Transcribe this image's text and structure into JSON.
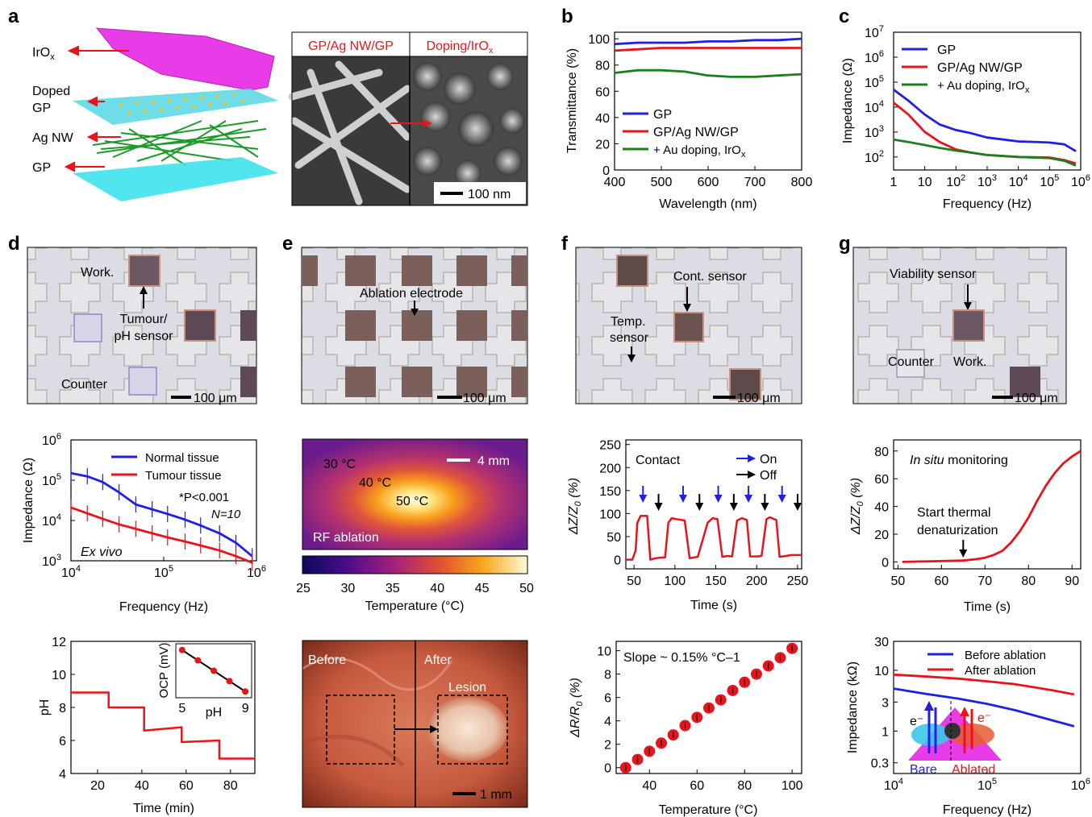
{
  "panel_letters": [
    "a",
    "b",
    "c",
    "d",
    "e",
    "f",
    "g"
  ],
  "panel_a": {
    "layer_labels": {
      "irox": "IrO",
      "irox_sub": "x",
      "doped": "Doped",
      "doped2": "GP",
      "agnw": "Ag NW",
      "gp": "GP"
    },
    "sem_left_title": "GP/Ag NW/GP",
    "sem_right_title": "Doping/IrO",
    "sem_right_sub": "x",
    "scalebar": "100 nm"
  },
  "panel_d_photo": {
    "work": "Work.",
    "tumour1": "Tumour/",
    "tumour2": "pH sensor",
    "counter": "Counter",
    "scalebar": "100 μm"
  },
  "panel_e_photo": {
    "ablation": "Ablation electrode",
    "scalebar": "100 μm"
  },
  "panel_f_photo": {
    "cont": "Cont. sensor",
    "temp1": "Temp.",
    "temp2": "sensor",
    "scalebar": "100 μm"
  },
  "panel_g_photo": {
    "viability": "Viability sensor",
    "counter": "Counter",
    "work": "Work.",
    "scalebar": "100 μm"
  },
  "thermal_map": {
    "t30": "30 °C",
    "t40": "40 °C",
    "t50": "50 °C",
    "scalebar": "4 mm",
    "caption": "RF ablation",
    "colorbar_ticks": [
      "25",
      "30",
      "35",
      "40",
      "45",
      "50"
    ],
    "xlabel": "Temperature (°C)"
  },
  "lesion_photo": {
    "before": "Before",
    "after": "After",
    "lesion": "Lesion",
    "scalebar": "1 mm"
  },
  "colors": {
    "blue": "#1f1fe6",
    "red": "#e8141b",
    "green": "#1e7d1e",
    "black": "#000000"
  },
  "chart_data": [
    {
      "id": "b",
      "type": "line",
      "xlabel": "Wavelength (nm)",
      "ylabel": "Transmittance (%)",
      "xlim": [
        400,
        800
      ],
      "ylim": [
        0,
        105
      ],
      "xticks": [
        "400",
        "500",
        "600",
        "700",
        "800"
      ],
      "yticks": [
        "0",
        "20",
        "40",
        "60",
        "80",
        "100"
      ],
      "legend": "bottom-left",
      "series": [
        {
          "name": "GP",
          "color": "#1f1fe6",
          "x": [
            400,
            450,
            500,
            550,
            600,
            650,
            700,
            750,
            800
          ],
          "y": [
            96,
            97,
            97,
            97,
            98,
            98,
            99,
            99,
            100
          ]
        },
        {
          "name": "GP/Ag NW/GP",
          "color": "#e8141b",
          "x": [
            400,
            450,
            500,
            550,
            600,
            650,
            700,
            750,
            800
          ],
          "y": [
            91,
            92,
            93,
            93,
            93,
            93,
            93,
            93,
            93
          ]
        },
        {
          "name": "+ Au doping, IrOx",
          "color": "#1e7d1e",
          "x": [
            400,
            450,
            500,
            550,
            600,
            650,
            700,
            750,
            800
          ],
          "y": [
            74,
            76,
            76,
            75,
            72,
            71,
            71,
            72,
            73
          ]
        }
      ]
    },
    {
      "id": "c",
      "type": "line",
      "xlabel": "Frequency (Hz)",
      "ylabel": "Impedance (Ω)",
      "xscale": "log",
      "yscale": "log",
      "xlim": [
        1,
        1000000
      ],
      "ylim": [
        30,
        10000000
      ],
      "legend": "top-left",
      "series": [
        {
          "name": "GP",
          "color": "#1f1fe6",
          "x": [
            1,
            3,
            10,
            30,
            100,
            300,
            1000,
            10000,
            100000,
            300000,
            700000
          ],
          "y": [
            50000,
            18000,
            5000,
            2000,
            1200,
            900,
            600,
            420,
            380,
            320,
            170
          ]
        },
        {
          "name": "GP/Ag NW/GP",
          "color": "#e8141b",
          "x": [
            1,
            3,
            10,
            30,
            100,
            300,
            1000,
            10000,
            100000,
            300000,
            700000
          ],
          "y": [
            15000,
            5000,
            1000,
            400,
            200,
            150,
            120,
            100,
            95,
            75,
            55
          ]
        },
        {
          "name": "+ Au doping, IrOx",
          "color": "#1e7d1e",
          "x": [
            1,
            3,
            10,
            30,
            100,
            300,
            1000,
            10000,
            100000,
            300000,
            700000
          ],
          "y": [
            500,
            400,
            300,
            230,
            180,
            150,
            120,
            100,
            90,
            70,
            45
          ]
        }
      ]
    },
    {
      "id": "d_imp",
      "type": "line",
      "xlabel": "Frequency (Hz)",
      "ylabel": "Impedance (Ω)",
      "xscale": "log",
      "yscale": "log",
      "xlim": [
        10000,
        1000000
      ],
      "ylim": [
        1000,
        1000000
      ],
      "legend": "top-right",
      "annotations": {
        "stat": "*P<0.001",
        "n": "N=10",
        "condition": "Ex vivo"
      },
      "series": [
        {
          "name": "Normal tissue",
          "color": "#1f1fe6",
          "x": [
            10000,
            15000,
            22000,
            33000,
            50000,
            75000,
            110000,
            170000,
            250000,
            400000,
            600000,
            900000
          ],
          "y": [
            150000,
            125000,
            90000,
            50000,
            25000,
            19000,
            14500,
            10500,
            7500,
            4800,
            2800,
            1300
          ]
        },
        {
          "name": "Tumour tissue",
          "color": "#e8141b",
          "x": [
            10000,
            15000,
            22000,
            33000,
            50000,
            75000,
            110000,
            170000,
            250000,
            400000,
            600000,
            900000
          ],
          "y": [
            21000,
            15000,
            11000,
            8000,
            6200,
            4800,
            3800,
            3000,
            2400,
            1800,
            1300,
            900
          ]
        }
      ]
    },
    {
      "id": "d_ph",
      "type": "line",
      "xlabel": "Time (min)",
      "ylabel": "pH",
      "xlim": [
        8,
        91
      ],
      "ylim": [
        4,
        12
      ],
      "xticks": [
        "20",
        "40",
        "60",
        "80"
      ],
      "yticks": [
        "4",
        "6",
        "8",
        "10",
        "12"
      ],
      "series": [
        {
          "name": "",
          "color": "#e8141b",
          "x": [
            8,
            25,
            25,
            41,
            41,
            58,
            58,
            75,
            75,
            91
          ],
          "y": [
            8.9,
            8.9,
            8.0,
            8.0,
            6.6,
            6.8,
            5.9,
            6.0,
            4.9,
            4.9
          ]
        }
      ],
      "inset": {
        "xlabel": "pH",
        "ylabel": "OCP (mV)",
        "xticks": [
          "5",
          "9"
        ],
        "x": [
          5,
          6,
          7,
          8,
          9
        ],
        "y": [
          5,
          4,
          3,
          2,
          1
        ]
      }
    },
    {
      "id": "f_contact",
      "type": "line",
      "xlabel": "Time (s)",
      "ylabel": "ΔZ/Z0 (%)",
      "xlim": [
        40,
        255
      ],
      "ylim": [
        -20,
        260
      ],
      "xticks": [
        "50",
        "100",
        "150",
        "200",
        "250"
      ],
      "yticks": [
        "0",
        "50",
        "100",
        "150",
        "200",
        "250"
      ],
      "annotations": {
        "title": "Contact",
        "on": "On",
        "off": "Off"
      },
      "series": [
        {
          "name": "",
          "color": "#e8141b",
          "x": [
            40,
            48,
            52,
            54,
            58,
            66,
            70,
            74,
            80,
            88,
            92,
            96,
            102,
            112,
            118,
            124,
            128,
            140,
            146,
            152,
            158,
            164,
            170,
            176,
            182,
            188,
            192,
            200,
            206,
            212,
            216,
            224,
            228,
            236,
            242,
            246,
            250,
            255
          ],
          "y": [
            0,
            0,
            20,
            80,
            95,
            95,
            0,
            2,
            4,
            5,
            80,
            90,
            88,
            85,
            3,
            5,
            6,
            80,
            90,
            88,
            6,
            8,
            7,
            85,
            90,
            86,
            7,
            7,
            8,
            88,
            92,
            86,
            6,
            8,
            10,
            10,
            10,
            10
          ]
        }
      ],
      "on_times": [
        61,
        110,
        153,
        190,
        231
      ],
      "off_times": [
        80,
        130,
        172,
        210,
        250
      ]
    },
    {
      "id": "f_temp",
      "type": "scatter",
      "xlabel": "Temperature (°C)",
      "ylabel": "ΔR/R0 (%)",
      "xlim": [
        26,
        104
      ],
      "ylim": [
        -0.5,
        10.8
      ],
      "xticks": [
        "40",
        "60",
        "80",
        "100"
      ],
      "yticks": [
        "0",
        "2",
        "4",
        "6",
        "8",
        "10"
      ],
      "annotations": {
        "slope": "Slope ~ 0.15% °C–1"
      },
      "series": [
        {
          "name": "",
          "color": "#e8141b",
          "x": [
            30,
            35,
            40,
            45,
            50,
            55,
            60,
            65,
            70,
            75,
            80,
            85,
            90,
            95,
            100
          ],
          "y": [
            0,
            0.7,
            1.4,
            2.1,
            2.8,
            3.6,
            4.3,
            5.1,
            5.8,
            6.6,
            7.3,
            8.0,
            8.7,
            9.4,
            10.2
          ]
        }
      ]
    },
    {
      "id": "g_insitu",
      "type": "line",
      "xlabel": "Time (s)",
      "ylabel": "ΔZ/Z0 (%)",
      "xlim": [
        49,
        92
      ],
      "ylim": [
        -5,
        88
      ],
      "xticks": [
        "50",
        "60",
        "70",
        "80",
        "90"
      ],
      "yticks": [
        "0",
        "20",
        "40",
        "60",
        "80"
      ],
      "annotations": {
        "title": "In situ monitoring",
        "note1": "Start thermal",
        "note2": "denaturization"
      },
      "series": [
        {
          "name": "",
          "color": "#e8141b",
          "x": [
            51,
            55,
            60,
            65,
            68,
            70,
            72,
            74,
            76,
            78,
            80,
            82,
            84,
            86,
            88,
            90,
            92
          ],
          "y": [
            0,
            0.3,
            0.6,
            1,
            2,
            3,
            5,
            8,
            14,
            22,
            32,
            44,
            55,
            64,
            71,
            76,
            80
          ]
        }
      ]
    },
    {
      "id": "g_imp",
      "type": "line",
      "xlabel": "Frequency (Hz)",
      "ylabel": "Impedance (kΩ)",
      "xscale": "log",
      "yscale": "log",
      "xlim": [
        10000,
        1000000
      ],
      "ylim": [
        0.2,
        30
      ],
      "legend": "top-right",
      "annotations": {
        "bare": "Bare",
        "ablated": "Ablated"
      },
      "series": [
        {
          "name": "Before ablation",
          "color": "#1f1fe6",
          "x": [
            10000,
            20000,
            50000,
            100000,
            200000,
            500000,
            850000
          ],
          "y": [
            5,
            4.2,
            3.4,
            2.8,
            2.2,
            1.5,
            1.2
          ]
        },
        {
          "name": "After ablation",
          "color": "#e8141b",
          "x": [
            10000,
            20000,
            50000,
            100000,
            200000,
            500000,
            850000
          ],
          "y": [
            8.5,
            8.0,
            7.3,
            6.6,
            5.9,
            4.7,
            4.0
          ]
        }
      ]
    }
  ]
}
